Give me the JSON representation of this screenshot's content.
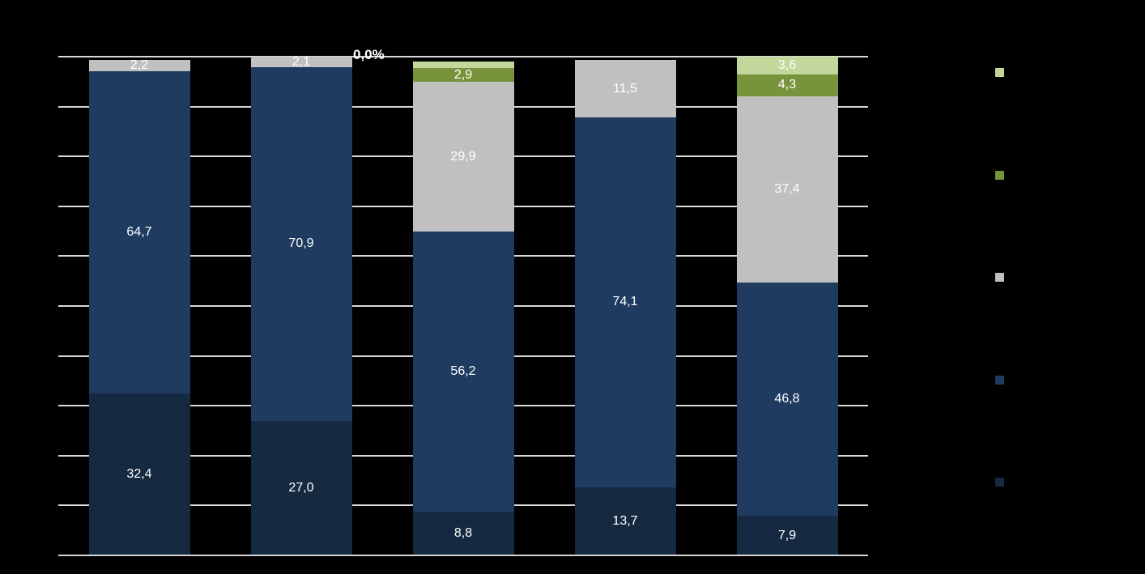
{
  "chart_data": {
    "type": "bar",
    "variant": "stacked-percentage-column",
    "title": "",
    "xlabel": "",
    "ylabel": "",
    "ylim": [
      0,
      100
    ],
    "gridline_step": 10,
    "grid": true,
    "categories": [
      "",
      "",
      "",
      "",
      ""
    ],
    "series": [
      {
        "name": "dark-navy",
        "color": "#152A41",
        "values": [
          32.4,
          27.0,
          8.8,
          13.7,
          7.9
        ],
        "labels": [
          "32,4",
          "27,0",
          "8,8",
          "13,7",
          "7,9"
        ]
      },
      {
        "name": "navy",
        "color": "#1F3C60",
        "values": [
          64.7,
          70.9,
          56.2,
          74.1,
          46.8
        ],
        "labels": [
          "64,7",
          "70,9",
          "56,2",
          "74,1",
          "46,8"
        ]
      },
      {
        "name": "gray",
        "color": "#C0C0C0",
        "values": [
          2.2,
          2.1,
          29.9,
          11.5,
          37.4
        ],
        "labels": [
          "2,2",
          "2,1",
          "29,9",
          "11,5",
          "37,4"
        ]
      },
      {
        "name": "green",
        "color": "#77933C",
        "values": [
          0,
          0,
          2.9,
          0,
          4.3
        ],
        "labels": [
          "",
          "",
          "2,9",
          "",
          "4,3"
        ]
      },
      {
        "name": "light-green",
        "color": "#C3D69B",
        "values": [
          0,
          0.0,
          1.2,
          0,
          3.6
        ],
        "labels": [
          "",
          "",
          "",
          "",
          "3,6"
        ]
      }
    ],
    "annotations": [
      {
        "text": "0,0%",
        "x": 436,
        "y": 59,
        "note": "zero-value data label shown beside top of second column"
      }
    ],
    "legend": {
      "position": "right",
      "labels_visible": false,
      "entries_top_to_bottom": [
        {
          "name": "light-green",
          "color": "#C3D69B"
        },
        {
          "name": "green",
          "color": "#77933C"
        },
        {
          "name": "gray",
          "color": "#C0C0C0"
        },
        {
          "name": "navy",
          "color": "#1F3C60"
        },
        {
          "name": "dark-navy",
          "color": "#152A41"
        }
      ]
    },
    "colors": {
      "background": "#000000",
      "gridline": "#D9D9D9",
      "axis_line": "#D3D3D3",
      "data_label": "#FFFFFF"
    }
  }
}
